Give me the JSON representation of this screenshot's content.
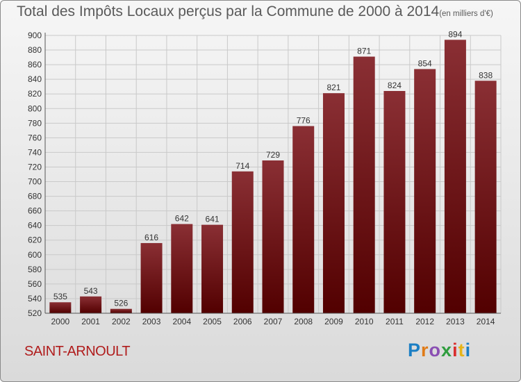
{
  "header": {
    "title": "Total des Impôts Locaux perçus par la Commune de 2000 à 2014",
    "unit": "(en milliers d'€)"
  },
  "footer": {
    "commune": "SAINT-ARNOULT",
    "brand": "Proxiti"
  },
  "colors": {
    "bar_top": "#8a2f34",
    "bar_bottom": "#520000",
    "commune_text": "#b01c1c"
  },
  "chart_data": {
    "type": "bar",
    "title": "Total des Impôts Locaux perçus par la Commune de 2000 à 2014",
    "subtitle": "(en milliers d'€)",
    "xlabel": "",
    "ylabel": "",
    "categories": [
      "2000",
      "2001",
      "2002",
      "2003",
      "2004",
      "2005",
      "2006",
      "2007",
      "2008",
      "2009",
      "2010",
      "2011",
      "2012",
      "2013",
      "2014"
    ],
    "values": [
      535,
      543,
      526,
      616,
      642,
      641,
      714,
      729,
      776,
      821,
      871,
      824,
      854,
      894,
      838
    ],
    "ylim": [
      520,
      900
    ],
    "ytick_step": 20,
    "grid": true,
    "legend": "none"
  }
}
